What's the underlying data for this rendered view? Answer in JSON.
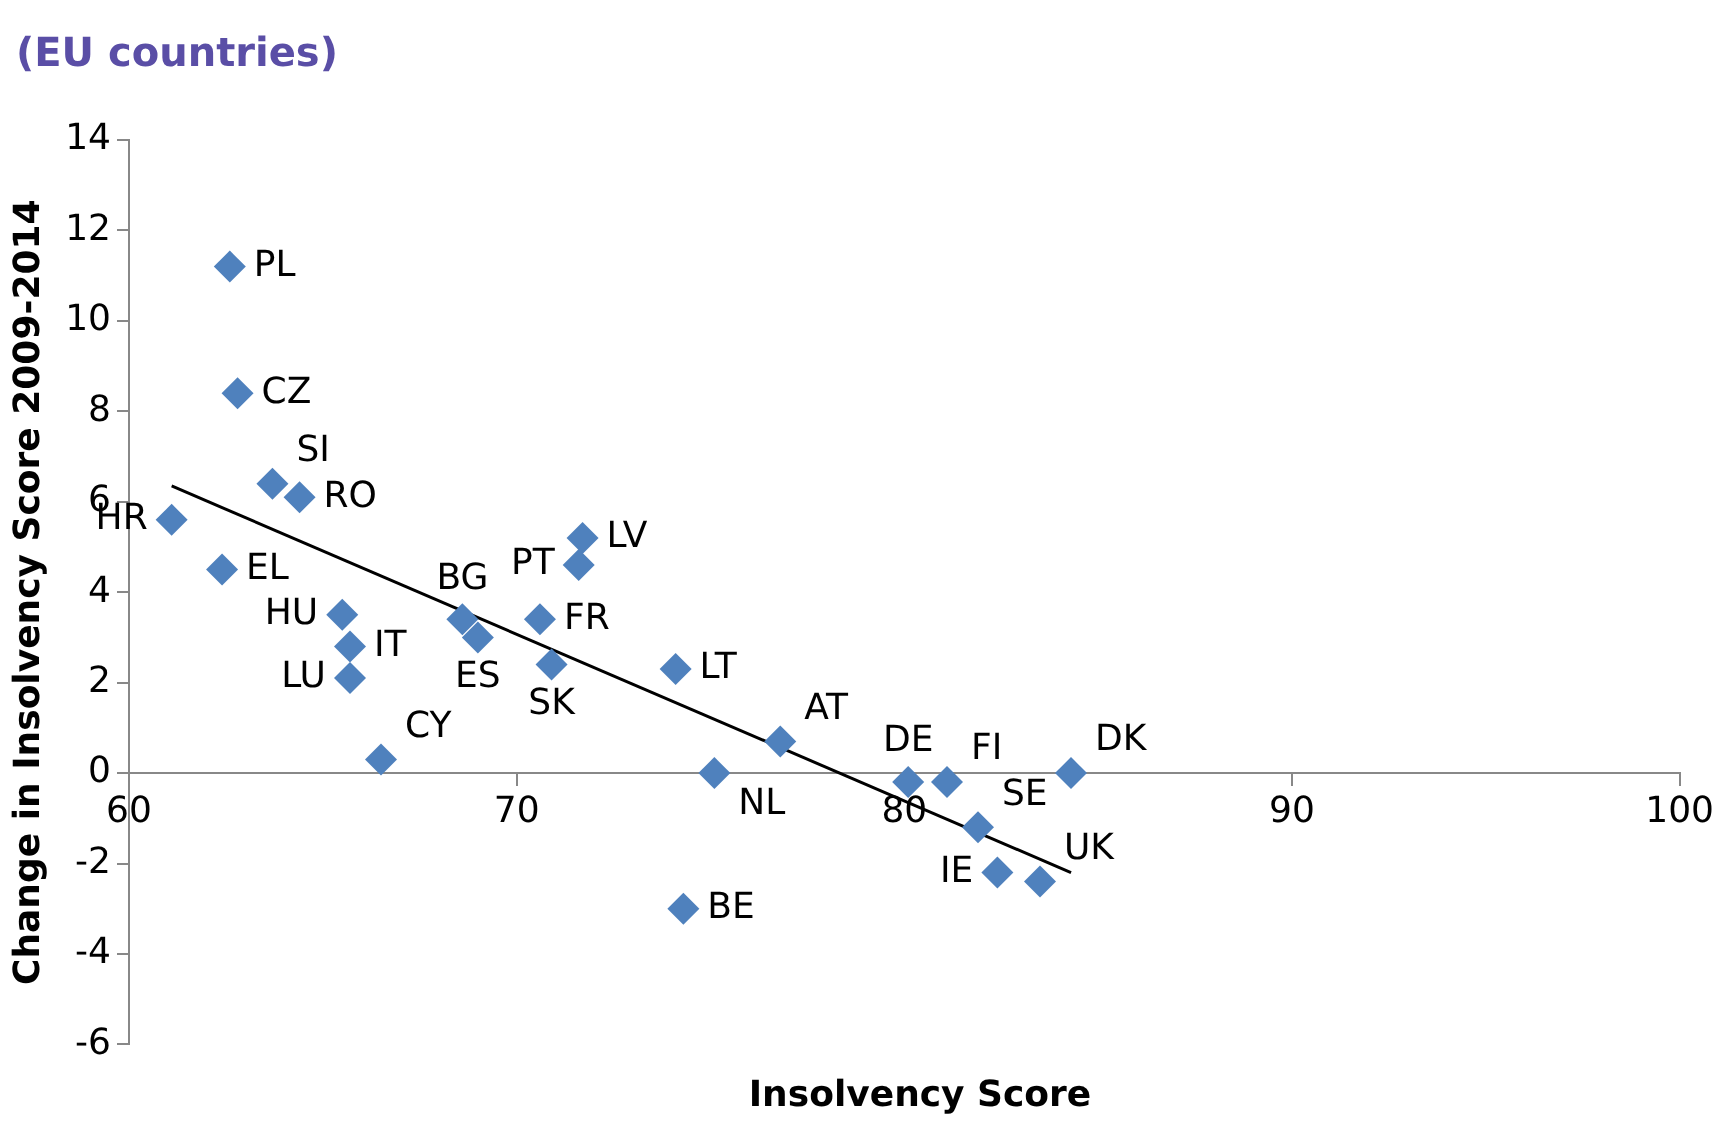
{
  "chart_data": {
    "type": "scatter",
    "title": "(EU countries)",
    "xlabel": "Insolvency Score",
    "ylabel": "Change in Insolvency Score 2009-2014",
    "xlim": [
      60,
      100
    ],
    "xticks": [
      60,
      70,
      80,
      90,
      100
    ],
    "ylim": [
      -6,
      14
    ],
    "yticks": [
      -6,
      -4,
      -2,
      0,
      2,
      4,
      6,
      8,
      10,
      12,
      14
    ],
    "grid": false,
    "legend": false,
    "marker": "diamond",
    "series": [
      {
        "color": "#4f81bd",
        "x": [
          62.6,
          62.8,
          63.7,
          64.4,
          61.1,
          62.4,
          65.5,
          65.7,
          65.7,
          66.5,
          68.6,
          69.0,
          70.6,
          70.9,
          71.7,
          71.6,
          74.1,
          75.1,
          76.8,
          74.3,
          80.1,
          81.1,
          81.9,
          82.4,
          83.5,
          84.3
        ],
        "values": [
          11.2,
          8.4,
          6.4,
          6.1,
          5.6,
          4.5,
          3.5,
          2.8,
          2.1,
          0.3,
          3.4,
          3.0,
          3.4,
          2.4,
          5.2,
          4.6,
          2.3,
          0,
          0.7,
          -3.0,
          -0.2,
          -0.2,
          -1.2,
          -2.2,
          -2.4,
          0
        ],
        "value_labels": [
          "PL",
          "CZ",
          "SI",
          "RO",
          "HR",
          "EL",
          "HU",
          "IT",
          "LU",
          "CY",
          "BG",
          "ES",
          "FR",
          "SK",
          "LV",
          "PT",
          "LT",
          "NL",
          "AT",
          "BE",
          "DE",
          "FI",
          "SE",
          "IE",
          "UK",
          "DK"
        ]
      },
      {
        "type": "line",
        "color": "#000000",
        "x": [
          61.1,
          84.3
        ],
        "values": [
          6.35,
          -2.2
        ],
        "marker": "none"
      }
    ]
  }
}
